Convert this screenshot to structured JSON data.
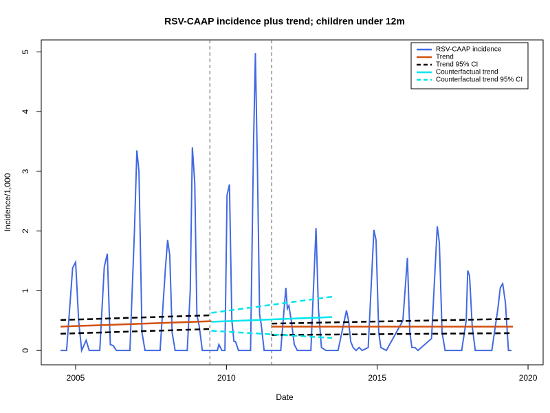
{
  "chart_data": {
    "type": "line",
    "title": "RSV-CAAP incidence plus trend; children under 12m",
    "x_label": "Date",
    "y_label": "Incidence/1,000",
    "xlim": [
      2003.86,
      2020.5
    ],
    "ylim": [
      -0.24,
      5.2
    ],
    "xticks": [
      2005,
      2010,
      2015,
      2020
    ],
    "yticks": [
      0,
      1,
      2,
      3,
      4,
      5
    ],
    "grid": false,
    "legend": "top-right",
    "vlines": [
      2009.45,
      2011.5
    ],
    "vline_color": "#555555",
    "series": [
      {
        "name": "RSV-CAAP incidence",
        "color": "#4169e1",
        "dashed": false,
        "x": [
          2004.5,
          2004.7,
          2004.9,
          2005.0,
          2005.1,
          2005.2,
          2005.35,
          2005.45,
          2005.8,
          2005.95,
          2006.05,
          2006.15,
          2006.25,
          2006.35,
          2006.8,
          2006.95,
          2007.03,
          2007.1,
          2007.2,
          2007.3,
          2007.8,
          2007.98,
          2008.05,
          2008.12,
          2008.2,
          2008.3,
          2008.7,
          2008.8,
          2008.87,
          2008.95,
          2009.02,
          2009.1,
          2009.2,
          2009.7,
          2009.75,
          2009.85,
          2009.95,
          2010.02,
          2010.1,
          2010.18,
          2010.25,
          2010.3,
          2010.4,
          2010.8,
          2010.9,
          2010.96,
          2011.03,
          2011.1,
          2011.15,
          2011.25,
          2011.8,
          2011.97,
          2012.02,
          2012.07,
          2012.15,
          2012.25,
          2012.35,
          2012.8,
          2012.97,
          2013.05,
          2013.15,
          2013.3,
          2013.7,
          2013.98,
          2014.05,
          2014.12,
          2014.2,
          2014.3,
          2014.4,
          2014.5,
          2014.7,
          2014.89,
          2014.96,
          2015.05,
          2015.12,
          2015.3,
          2015.85,
          2016.0,
          2016.08,
          2016.15,
          2016.25,
          2016.35,
          2016.8,
          2016.99,
          2017.06,
          2017.15,
          2017.25,
          2017.8,
          2017.95,
          2018.0,
          2018.06,
          2018.15,
          2018.25,
          2018.8,
          2019.0,
          2019.08,
          2019.16,
          2019.25,
          2019.35,
          2019.45
        ],
        "values": [
          0,
          0,
          1.38,
          1.48,
          0.5,
          0,
          0.17,
          0,
          0,
          1.4,
          1.62,
          0.1,
          0.08,
          0,
          0,
          2.0,
          3.35,
          3.0,
          0.3,
          0,
          0,
          1.4,
          1.85,
          1.6,
          0.3,
          0,
          0,
          1.0,
          3.4,
          2.8,
          0.6,
          0.4,
          0,
          0,
          0.1,
          0,
          0,
          2.6,
          2.78,
          0.5,
          0.15,
          0.15,
          0,
          0,
          3.5,
          4.98,
          3.0,
          0.6,
          0.45,
          0,
          0,
          1.05,
          0.7,
          0.75,
          0.5,
          0.1,
          0,
          0,
          2.05,
          0.7,
          0.05,
          0,
          0,
          0.67,
          0.5,
          0.15,
          0.05,
          0,
          0.05,
          0,
          0.05,
          2.02,
          1.85,
          0.3,
          0.05,
          0,
          0.5,
          1.55,
          0.3,
          0.05,
          0.05,
          0,
          0.2,
          2.08,
          1.8,
          0.3,
          0,
          0,
          0.5,
          1.34,
          1.25,
          0.4,
          0,
          0,
          0.7,
          1.05,
          1.12,
          0.8,
          0,
          0
        ]
      },
      {
        "name": "Trend",
        "color": "#d2500f",
        "dashed": false,
        "x": [
          2004.5,
          2009.5,
          2010.5,
          2011.5,
          2019.5
        ],
        "values": [
          0.4,
          0.49,
          null,
          0.4,
          0.4
        ]
      },
      {
        "name": "Trend 95% CI",
        "color": "#000000",
        "dashed": true,
        "x": [
          2004.5,
          2009.5,
          2010.5,
          2011.5,
          2019.5,
          2019.6,
          2004.5,
          2009.5,
          2010.5,
          2011.5,
          2019.5
        ],
        "values": [
          0.51,
          0.59,
          null,
          0.45,
          0.53,
          null,
          0.28,
          0.36,
          null,
          0.26,
          0.29
        ]
      },
      {
        "name": "Counterfactual trend",
        "color": "#00e5ee",
        "dashed": false,
        "x": [
          2009.5,
          2013.5
        ],
        "values": [
          0.48,
          0.56
        ]
      },
      {
        "name": "Counterfactual trend 95% CI",
        "color": "#00e5ee",
        "dashed": true,
        "x": [
          2009.5,
          2013.5,
          2013.6,
          2009.5,
          2013.5
        ],
        "values": [
          0.63,
          0.9,
          null,
          0.33,
          0.21
        ]
      }
    ]
  }
}
